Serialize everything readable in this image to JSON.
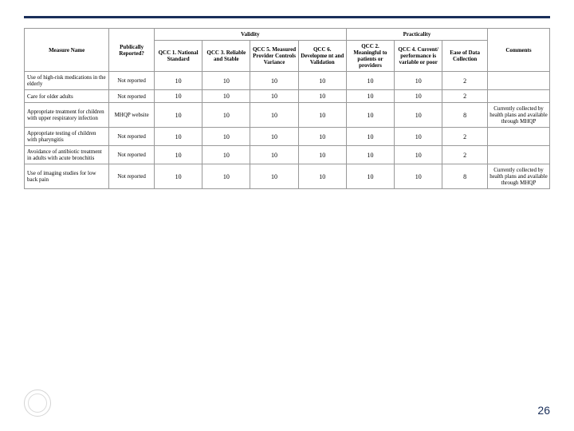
{
  "top_rule_color": "#1a2f5a",
  "page_number": "26",
  "headers": {
    "measure": "Measure Name",
    "publically": "Publically Reported?",
    "validity": "Validity",
    "practicality": "Practicality",
    "comments": "Comments",
    "qcc1": "QCC 1. National Standard",
    "qcc3": "QCC 3. Reliable and Stable",
    "qcc5": "QCC 5. Measured Provider Controls Variance",
    "qcc6": "QCC 6. Developme nt and Validation",
    "qcc2": "QCC 2. Meaningful to patients or providers",
    "qcc4": "QCC 4. Current/ performance is variable or poor",
    "ease": "Ease of Data Collection"
  },
  "rows": [
    {
      "measure": "Use of high-risk medications in the elderly",
      "pub": "Not reported",
      "v": [
        "10",
        "10",
        "10",
        "10",
        "10",
        "10",
        "2"
      ],
      "comment": ""
    },
    {
      "measure": "Care for older adults",
      "pub": "Not reported",
      "v": [
        "10",
        "10",
        "10",
        "10",
        "10",
        "10",
        "2"
      ],
      "comment": ""
    },
    {
      "measure": "Appropriate treatment for children with upper respiratory infection",
      "pub": "MHQP website",
      "v": [
        "10",
        "10",
        "10",
        "10",
        "10",
        "10",
        "8"
      ],
      "comment": "Currently collected by health plans and available through MHQP"
    },
    {
      "measure": "Appropriate testing of children with pharyngitis",
      "pub": "Not reported",
      "v": [
        "10",
        "10",
        "10",
        "10",
        "10",
        "10",
        "2"
      ],
      "comment": ""
    },
    {
      "measure": "Avoidance of antibiotic treatment in adults with acute bronchitis",
      "pub": "Not reported",
      "v": [
        "10",
        "10",
        "10",
        "10",
        "10",
        "10",
        "2"
      ],
      "comment": ""
    },
    {
      "measure": "Use of imaging studies for low back pain",
      "pub": "Not reported",
      "v": [
        "10",
        "10",
        "10",
        "10",
        "10",
        "10",
        "8"
      ],
      "comment": "Currently collected by health plans and available through MHQP"
    }
  ]
}
